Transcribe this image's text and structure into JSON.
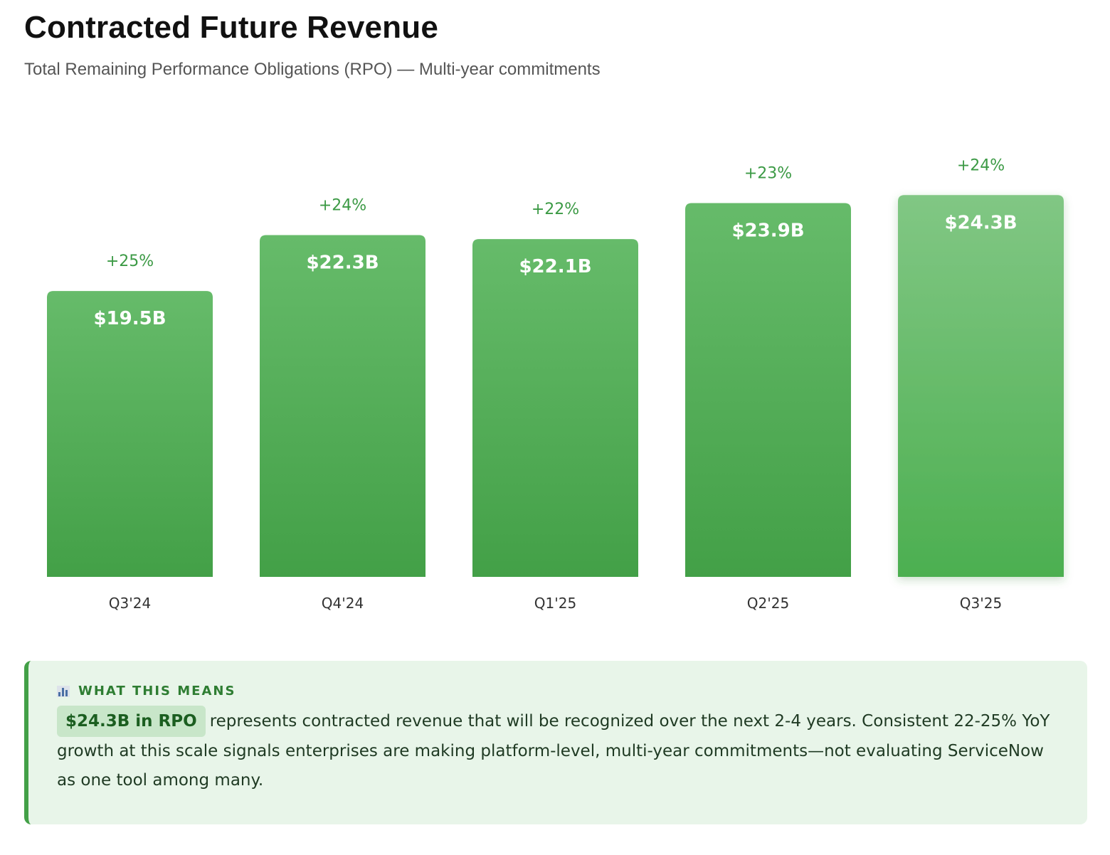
{
  "header": {
    "title": "Contracted Future Revenue",
    "subtitle": "Total Remaining Performance Obligations (RPO) — Multi-year commitments"
  },
  "chart_data": {
    "type": "bar",
    "title": "Contracted Future Revenue",
    "subtitle": "Total Remaining Performance Obligations (RPO) — Multi-year commitments",
    "xlabel": "",
    "ylabel": "",
    "unit": "$B",
    "categories": [
      "Q3'24",
      "Q4'24",
      "Q1'25",
      "Q2'25",
      "Q3'25"
    ],
    "values": [
      19.5,
      22.3,
      22.1,
      23.9,
      24.3
    ],
    "value_labels": [
      "$19.5B",
      "$22.3B",
      "$22.1B",
      "$23.9B",
      "$24.3B"
    ],
    "growth_labels": [
      "+25%",
      "+24%",
      "+22%",
      "+23%",
      "+24%"
    ],
    "highlighted_category": "Q3'25",
    "colors": {
      "bar_top": "#66bb6a",
      "bar_bottom": "#43a047",
      "highlight_top": "#81c784",
      "highlight_bottom": "#4caf50",
      "growth_text": "#3c9a45"
    }
  },
  "insight": {
    "icon": "bar-chart-icon",
    "heading": "WHAT THIS MEANS",
    "highlight": "$24.3B in RPO",
    "body": "represents contracted revenue that will be recognized over the next 2-4 years. Consistent 22-25% YoY growth at this scale signals enterprises are making platform-level, multi-year commitments—not evaluating ServiceNow as one tool among many."
  }
}
